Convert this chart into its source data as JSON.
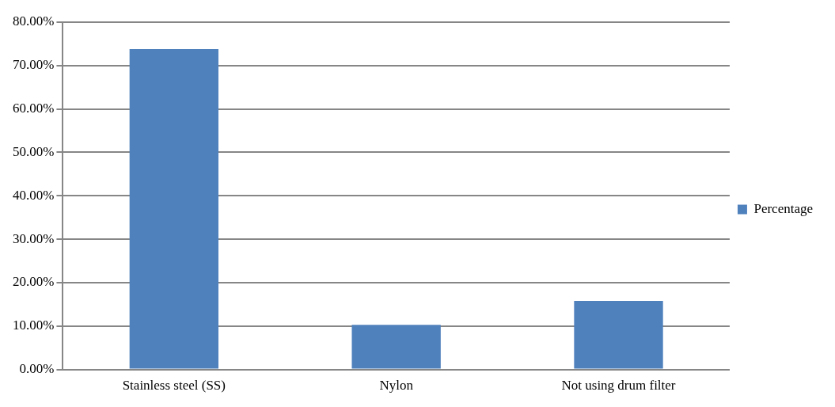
{
  "chart_data": {
    "type": "bar",
    "categories": [
      "Stainless steel (SS)",
      "Nylon",
      "Not using drum filter"
    ],
    "series": [
      {
        "name": "Percentage",
        "color": "#4f81bd",
        "values": [
          73.8,
          10.3,
          15.8
        ]
      }
    ],
    "ylim": [
      0,
      80
    ],
    "yticks": [
      {
        "value": 0,
        "label": "0.00%"
      },
      {
        "value": 10,
        "label": "10.00%"
      },
      {
        "value": 20,
        "label": "20.00%"
      },
      {
        "value": 30,
        "label": "30.00%"
      },
      {
        "value": 40,
        "label": "40.00%"
      },
      {
        "value": 50,
        "label": "50.00%"
      },
      {
        "value": 60,
        "label": "60.00%"
      },
      {
        "value": 70,
        "label": "70.00%"
      },
      {
        "value": 80,
        "label": "80.00%"
      }
    ],
    "grid": "y",
    "legend": "right"
  }
}
